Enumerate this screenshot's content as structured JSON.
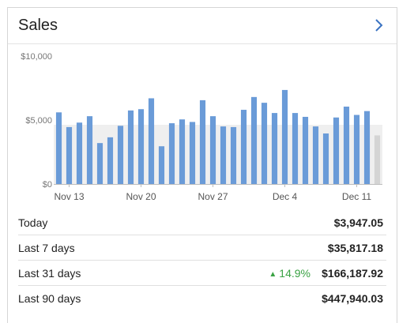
{
  "card": {
    "title": "Sales",
    "nav_icon": "chevron-right-icon"
  },
  "chart_data": {
    "type": "bar",
    "ylim": [
      0,
      10000
    ],
    "y_ticks": [
      {
        "value": 0,
        "label": "$0"
      },
      {
        "value": 5000,
        "label": "$5,000"
      },
      {
        "value": 10000,
        "label": "$10,000"
      }
    ],
    "x_tick_labels": [
      {
        "index": 1,
        "label": "Nov 13"
      },
      {
        "index": 8,
        "label": "Nov 20"
      },
      {
        "index": 15,
        "label": "Nov 27"
      },
      {
        "index": 22,
        "label": "Dec 4"
      },
      {
        "index": 29,
        "label": "Dec 11"
      }
    ],
    "values": [
      5600,
      4450,
      4800,
      5300,
      3200,
      3650,
      4550,
      5750,
      5850,
      6700,
      2950,
      4750,
      5050,
      4850,
      6550,
      5300,
      4500,
      4450,
      5800,
      6800,
      6350,
      5550,
      7350,
      5550,
      5250,
      4500,
      3950,
      5200,
      6050,
      5400,
      5700,
      3800
    ],
    "series_colors": {
      "bar": "#6a9bd8",
      "current_partial": "#d4d4d4",
      "band": "#efefef"
    },
    "last_bar_partial": true
  },
  "stats": [
    {
      "label": "Today",
      "value": "$3,947.05"
    },
    {
      "label": "Last 7 days",
      "value": "$35,817.18"
    },
    {
      "label": "Last 31 days",
      "value": "$166,187.92",
      "change": "14.9%",
      "change_direction": "up",
      "change_color": "#3aa244"
    },
    {
      "label": "Last 90 days",
      "value": "$447,940.03"
    }
  ]
}
